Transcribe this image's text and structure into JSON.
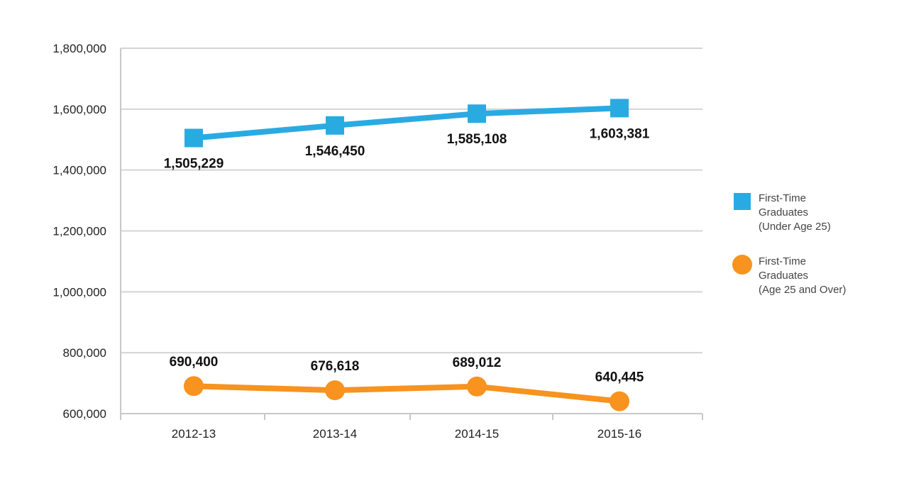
{
  "chart_data": {
    "type": "line",
    "categories": [
      "2012-13",
      "2013-14",
      "2014-15",
      "2015-16"
    ],
    "ylim": [
      600000,
      1800000
    ],
    "yticks": [
      600000,
      800000,
      1000000,
      1200000,
      1400000,
      1600000,
      1800000
    ],
    "ytick_labels": [
      "600,000",
      "800,000",
      "1,000,000",
      "1,200,000",
      "1,400,000",
      "1,600,000",
      "1,800,000"
    ],
    "grid": true,
    "legend_position": "right",
    "series": [
      {
        "key": "under25",
        "legend_lines": [
          "First-Time",
          "Graduates",
          "(Under Age 25)"
        ],
        "color": "#29abe2",
        "marker": "square",
        "values": [
          1505229,
          1546450,
          1585108,
          1603381
        ],
        "labels": [
          "1,505,229",
          "1,546,450",
          "1,585,108",
          "1,603,381"
        ]
      },
      {
        "key": "over25",
        "legend_lines": [
          "First-Time",
          "Graduates",
          "(Age 25 and Over)"
        ],
        "color": "#f7931e",
        "marker": "circle",
        "values": [
          690400,
          676618,
          689012,
          640445
        ],
        "labels": [
          "690,400",
          "676,618",
          "689,012",
          "640,445"
        ]
      }
    ]
  }
}
